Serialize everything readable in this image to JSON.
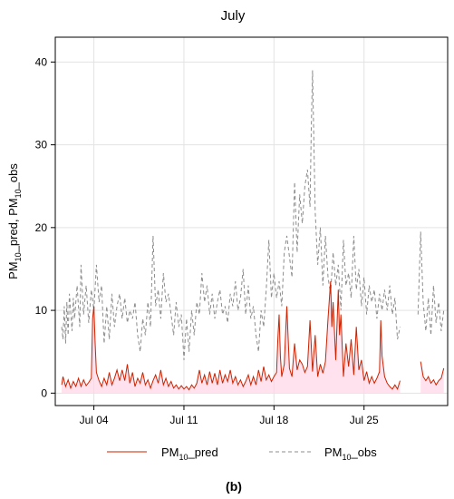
{
  "chart_data": {
    "type": "line",
    "title": "July",
    "ylabel": "PM10_pred, PM10_obs",
    "ylabel_parts": {
      "p1": "PM",
      "s1": "10",
      "p2": "_pred, PM",
      "s2": "10",
      "p3": "_obs"
    },
    "xlim": [
      1,
      31.5
    ],
    "ylim": [
      -1.5,
      43
    ],
    "x_unit": "day of July",
    "x_ticks": [
      {
        "value": 4,
        "label": "Jul 04"
      },
      {
        "value": 11,
        "label": "Jul 11"
      },
      {
        "value": 18,
        "label": "Jul 18"
      },
      {
        "value": 25,
        "label": "Jul 25"
      }
    ],
    "y_ticks": [
      0,
      10,
      20,
      30,
      40
    ],
    "grid": true,
    "legend_position": "bottom",
    "caption": "(b)",
    "series": [
      {
        "name": "PM10_pred",
        "legend_main": "PM",
        "legend_sub": "10",
        "legend_suffix": "_pred",
        "color": "#cc2200",
        "dash": "solid",
        "points": [
          [
            1.5,
            1.0
          ],
          [
            1.6,
            2.0
          ],
          [
            1.8,
            0.8
          ],
          [
            2.0,
            1.6
          ],
          [
            2.2,
            0.6
          ],
          [
            2.4,
            1.4
          ],
          [
            2.6,
            0.8
          ],
          [
            2.8,
            1.8
          ],
          [
            3.0,
            0.8
          ],
          [
            3.2,
            1.6
          ],
          [
            3.4,
            0.9
          ],
          [
            3.6,
            1.3
          ],
          [
            3.8,
            1.8
          ],
          [
            3.9,
            9.0
          ],
          [
            4.0,
            10.5
          ],
          [
            4.1,
            6.0
          ],
          [
            4.2,
            2.5
          ],
          [
            4.4,
            1.5
          ],
          [
            4.6,
            0.8
          ],
          [
            4.8,
            1.8
          ],
          [
            5.0,
            1.0
          ],
          [
            5.2,
            2.5
          ],
          [
            5.4,
            1.0
          ],
          [
            5.6,
            1.8
          ],
          [
            5.8,
            2.8
          ],
          [
            6.0,
            1.5
          ],
          [
            6.2,
            2.8
          ],
          [
            6.4,
            1.5
          ],
          [
            6.6,
            3.5
          ],
          [
            6.8,
            1.2
          ],
          [
            7.0,
            2.5
          ],
          [
            7.2,
            0.8
          ],
          [
            7.4,
            1.8
          ],
          [
            7.6,
            1.2
          ],
          [
            7.8,
            2.5
          ],
          [
            8.0,
            1.0
          ],
          [
            8.2,
            1.6
          ],
          [
            8.4,
            0.6
          ],
          [
            8.6,
            1.5
          ],
          [
            8.8,
            2.2
          ],
          [
            9.0,
            1.2
          ],
          [
            9.2,
            2.8
          ],
          [
            9.4,
            1.0
          ],
          [
            9.6,
            1.8
          ],
          [
            9.8,
            0.8
          ],
          [
            10.0,
            1.4
          ],
          [
            10.2,
            0.6
          ],
          [
            10.4,
            1.0
          ],
          [
            10.6,
            0.5
          ],
          [
            10.8,
            0.9
          ],
          [
            11.0,
            0.5
          ],
          [
            11.2,
            0.8
          ],
          [
            11.4,
            0.4
          ],
          [
            11.6,
            1.0
          ],
          [
            11.8,
            0.6
          ],
          [
            12.0,
            1.2
          ],
          [
            12.2,
            2.8
          ],
          [
            12.4,
            1.2
          ],
          [
            12.6,
            2.2
          ],
          [
            12.8,
            1.0
          ],
          [
            13.0,
            2.6
          ],
          [
            13.2,
            1.2
          ],
          [
            13.4,
            2.4
          ],
          [
            13.6,
            1.0
          ],
          [
            13.8,
            2.8
          ],
          [
            14.0,
            1.2
          ],
          [
            14.2,
            2.2
          ],
          [
            14.4,
            1.4
          ],
          [
            14.6,
            2.8
          ],
          [
            14.8,
            1.2
          ],
          [
            15.0,
            2.0
          ],
          [
            15.2,
            1.0
          ],
          [
            15.4,
            1.6
          ],
          [
            15.6,
            0.8
          ],
          [
            15.8,
            1.4
          ],
          [
            16.0,
            2.2
          ],
          [
            16.2,
            1.0
          ],
          [
            16.4,
            2.0
          ],
          [
            16.6,
            1.0
          ],
          [
            16.8,
            2.8
          ],
          [
            17.0,
            1.4
          ],
          [
            17.2,
            3.2
          ],
          [
            17.4,
            1.6
          ],
          [
            17.6,
            2.2
          ],
          [
            17.8,
            1.4
          ],
          [
            18.0,
            2.0
          ],
          [
            18.2,
            2.5
          ],
          [
            18.3,
            6.5
          ],
          [
            18.4,
            9.5
          ],
          [
            18.5,
            4.5
          ],
          [
            18.6,
            2.0
          ],
          [
            18.8,
            3.5
          ],
          [
            19.0,
            10.5
          ],
          [
            19.2,
            3.0
          ],
          [
            19.4,
            2.0
          ],
          [
            19.6,
            6.0
          ],
          [
            19.8,
            2.8
          ],
          [
            20.0,
            4.0
          ],
          [
            20.2,
            3.5
          ],
          [
            20.4,
            2.5
          ],
          [
            20.6,
            3.2
          ],
          [
            20.8,
            8.8
          ],
          [
            21.0,
            2.6
          ],
          [
            21.2,
            7.0
          ],
          [
            21.4,
            2.0
          ],
          [
            21.6,
            3.5
          ],
          [
            21.8,
            2.4
          ],
          [
            22.0,
            3.8
          ],
          [
            22.2,
            9.0
          ],
          [
            22.4,
            13.5
          ],
          [
            22.5,
            8.0
          ],
          [
            22.6,
            11.0
          ],
          [
            22.8,
            4.0
          ],
          [
            23.0,
            12.5
          ],
          [
            23.1,
            7.0
          ],
          [
            23.2,
            9.5
          ],
          [
            23.4,
            2.0
          ],
          [
            23.6,
            6.0
          ],
          [
            23.8,
            3.2
          ],
          [
            24.0,
            6.5
          ],
          [
            24.2,
            2.2
          ],
          [
            24.4,
            8.0
          ],
          [
            24.6,
            2.8
          ],
          [
            24.8,
            4.0
          ],
          [
            25.0,
            1.5
          ],
          [
            25.2,
            2.6
          ],
          [
            25.4,
            1.2
          ],
          [
            25.6,
            2.0
          ],
          [
            25.8,
            1.2
          ],
          [
            26.0,
            1.8
          ],
          [
            26.2,
            2.6
          ],
          [
            26.3,
            8.8
          ],
          [
            26.4,
            4.5
          ],
          [
            26.6,
            2.0
          ],
          [
            26.8,
            1.2
          ],
          [
            27.0,
            0.8
          ],
          [
            27.2,
            0.5
          ],
          [
            27.4,
            1.0
          ],
          [
            27.6,
            0.5
          ],
          [
            27.8,
            1.5
          ],
          null,
          [
            29.4,
            3.8
          ],
          [
            29.6,
            2.0
          ],
          [
            29.8,
            1.5
          ],
          [
            30.0,
            2.0
          ],
          [
            30.2,
            1.2
          ],
          [
            30.4,
            1.6
          ],
          [
            30.6,
            1.0
          ],
          [
            30.8,
            1.5
          ],
          [
            31.0,
            1.8
          ],
          [
            31.2,
            3.0
          ]
        ]
      },
      {
        "name": "PM10_obs",
        "legend_main": "PM",
        "legend_sub": "10",
        "legend_suffix": "_obs",
        "color": "#8c8c8c",
        "dash": "4,3",
        "points": [
          [
            1.5,
            8.0
          ],
          [
            1.6,
            6.5
          ],
          [
            1.7,
            10.5
          ],
          [
            1.8,
            6.0
          ],
          [
            1.9,
            11.0
          ],
          [
            2.0,
            7.0
          ],
          [
            2.1,
            12.0
          ],
          [
            2.3,
            7.5
          ],
          [
            2.4,
            11.5
          ],
          [
            2.5,
            9.0
          ],
          [
            2.7,
            13.0
          ],
          [
            2.9,
            8.0
          ],
          [
            3.0,
            15.5
          ],
          [
            3.2,
            9.5
          ],
          [
            3.4,
            13.0
          ],
          [
            3.6,
            8.5
          ],
          [
            3.8,
            12.5
          ],
          [
            4.0,
            10.0
          ],
          [
            4.2,
            15.5
          ],
          [
            4.4,
            11.0
          ],
          [
            4.6,
            13.0
          ],
          [
            4.8,
            6.0
          ],
          [
            5.0,
            10.5
          ],
          [
            5.2,
            6.5
          ],
          [
            5.4,
            12.0
          ],
          [
            5.6,
            8.0
          ],
          [
            5.8,
            10.5
          ],
          [
            6.0,
            12.0
          ],
          [
            6.2,
            9.0
          ],
          [
            6.4,
            11.5
          ],
          [
            6.6,
            8.5
          ],
          [
            6.8,
            10.0
          ],
          [
            7.0,
            9.0
          ],
          [
            7.2,
            11.0
          ],
          [
            7.4,
            7.0
          ],
          [
            7.6,
            5.0
          ],
          [
            7.8,
            9.0
          ],
          [
            8.0,
            7.0
          ],
          [
            8.2,
            11.0
          ],
          [
            8.4,
            8.0
          ],
          [
            8.6,
            19.0
          ],
          [
            8.8,
            10.5
          ],
          [
            9.0,
            12.5
          ],
          [
            9.2,
            9.0
          ],
          [
            9.4,
            14.5
          ],
          [
            9.6,
            11.0
          ],
          [
            9.8,
            12.0
          ],
          [
            10.0,
            9.5
          ],
          [
            10.2,
            7.0
          ],
          [
            10.4,
            11.0
          ],
          [
            10.6,
            8.0
          ],
          [
            10.8,
            9.5
          ],
          [
            11.0,
            4.0
          ],
          [
            11.2,
            9.0
          ],
          [
            11.4,
            5.0
          ],
          [
            11.6,
            10.0
          ],
          [
            11.8,
            7.0
          ],
          [
            12.0,
            11.0
          ],
          [
            12.2,
            9.5
          ],
          [
            12.4,
            14.5
          ],
          [
            12.6,
            11.0
          ],
          [
            12.8,
            13.0
          ],
          [
            13.0,
            9.5
          ],
          [
            13.2,
            12.0
          ],
          [
            13.4,
            9.0
          ],
          [
            13.6,
            11.0
          ],
          [
            13.8,
            12.5
          ],
          [
            14.0,
            9.5
          ],
          [
            14.2,
            10.5
          ],
          [
            14.4,
            8.5
          ],
          [
            14.6,
            12.0
          ],
          [
            14.8,
            10.5
          ],
          [
            15.0,
            13.5
          ],
          [
            15.2,
            10.0
          ],
          [
            15.4,
            11.5
          ],
          [
            15.6,
            15.0
          ],
          [
            15.8,
            9.5
          ],
          [
            16.0,
            13.0
          ],
          [
            16.2,
            9.0
          ],
          [
            16.4,
            10.5
          ],
          [
            16.6,
            7.0
          ],
          [
            16.8,
            5.0
          ],
          [
            17.0,
            10.0
          ],
          [
            17.2,
            8.0
          ],
          [
            17.4,
            12.5
          ],
          [
            17.6,
            18.5
          ],
          [
            17.8,
            11.5
          ],
          [
            18.0,
            14.5
          ],
          [
            18.2,
            11.5
          ],
          [
            18.4,
            13.5
          ],
          [
            18.6,
            10.5
          ],
          [
            18.8,
            17.0
          ],
          [
            19.0,
            19.0
          ],
          [
            19.2,
            16.5
          ],
          [
            19.4,
            14.0
          ],
          [
            19.6,
            25.5
          ],
          [
            19.8,
            17.0
          ],
          [
            20.0,
            24.0
          ],
          [
            20.2,
            20.5
          ],
          [
            20.4,
            25.0
          ],
          [
            20.6,
            27.0
          ],
          [
            20.8,
            22.5
          ],
          [
            20.9,
            32.0
          ],
          [
            21.0,
            39.0
          ],
          [
            21.2,
            22.0
          ],
          [
            21.4,
            15.5
          ],
          [
            21.6,
            20.0
          ],
          [
            21.8,
            13.0
          ],
          [
            22.0,
            19.0
          ],
          [
            22.2,
            14.0
          ],
          [
            22.4,
            12.0
          ],
          [
            22.6,
            17.0
          ],
          [
            22.8,
            13.0
          ],
          [
            23.0,
            15.5
          ],
          [
            23.2,
            10.0
          ],
          [
            23.4,
            18.5
          ],
          [
            23.6,
            13.0
          ],
          [
            23.8,
            14.5
          ],
          [
            24.0,
            11.5
          ],
          [
            24.2,
            19.0
          ],
          [
            24.4,
            12.5
          ],
          [
            24.6,
            15.0
          ],
          [
            24.8,
            10.5
          ],
          [
            25.0,
            14.0
          ],
          [
            25.2,
            9.5
          ],
          [
            25.4,
            13.0
          ],
          [
            25.6,
            11.0
          ],
          [
            25.8,
            12.5
          ],
          [
            26.0,
            9.0
          ],
          [
            26.2,
            12.0
          ],
          [
            26.4,
            10.0
          ],
          [
            26.6,
            12.5
          ],
          [
            26.8,
            10.0
          ],
          [
            27.0,
            13.0
          ],
          [
            27.2,
            9.5
          ],
          [
            27.4,
            11.5
          ],
          [
            27.6,
            6.5
          ],
          [
            27.8,
            8.0
          ],
          null,
          [
            29.2,
            9.5
          ],
          [
            29.4,
            19.5
          ],
          [
            29.6,
            11.0
          ],
          [
            29.8,
            7.5
          ],
          [
            30.0,
            11.5
          ],
          [
            30.2,
            7.0
          ],
          [
            30.4,
            13.0
          ],
          [
            30.6,
            8.5
          ],
          [
            30.8,
            11.0
          ],
          [
            31.0,
            7.5
          ],
          [
            31.2,
            10.0
          ]
        ]
      }
    ]
  }
}
